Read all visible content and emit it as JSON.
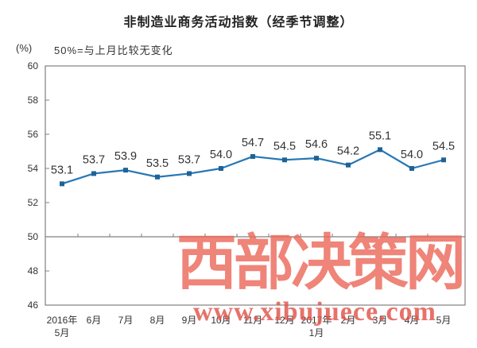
{
  "chart_data": {
    "type": "line",
    "title": "非制造业商务活动指数（经季节调整）",
    "unit_label": "(%)",
    "annotation": "50%=与上月比较无变化",
    "categories": [
      "2016年\n5月",
      "6月",
      "7月",
      "8月",
      "9月",
      "10月",
      "11月",
      "12月",
      "2017年\n1月",
      "2月",
      "3月",
      "4月",
      "5月"
    ],
    "values": [
      53.1,
      53.7,
      53.9,
      53.5,
      53.7,
      54.0,
      54.7,
      54.5,
      54.6,
      54.2,
      55.1,
      54.0,
      54.5
    ],
    "ylim": [
      46,
      60
    ],
    "ytick_step": 2,
    "reference_line": 50,
    "grid": false,
    "legend": "none",
    "line_color": "#2777b4",
    "marker_color": "#1f6396",
    "axis_color": "#808080",
    "label_color": "#333333"
  },
  "watermark": {
    "text": "西部决策网",
    "url": "www.xibujuece.com",
    "color": "#ec6a5c",
    "url_color": "#e2544a"
  }
}
